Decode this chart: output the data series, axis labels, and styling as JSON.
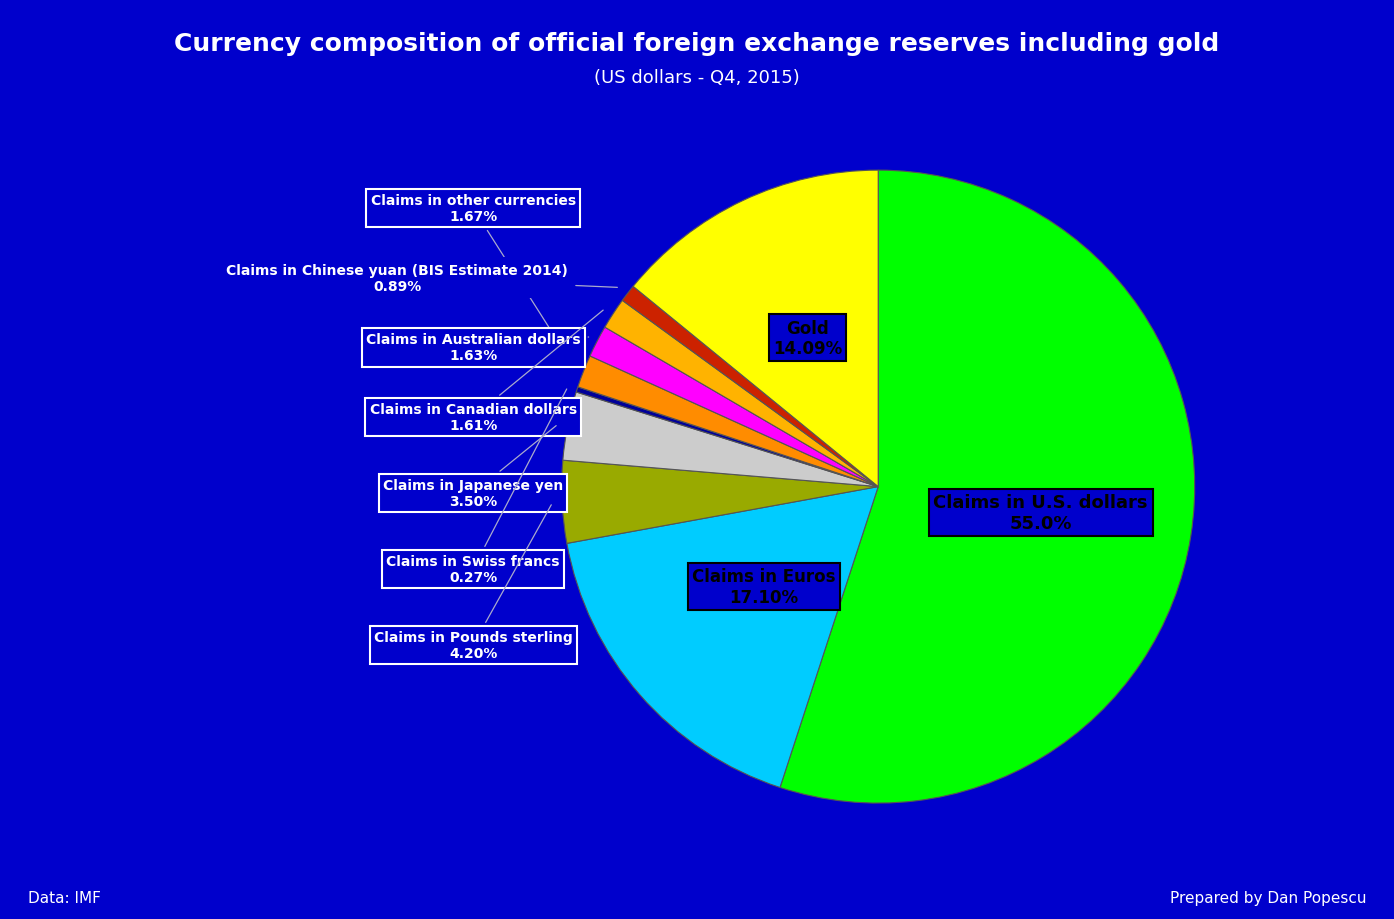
{
  "title": "Currency composition of official foreign exchange reserves including gold",
  "subtitle": "(US dollars - Q4, 2015)",
  "background_color": "#0000CC",
  "slices": [
    {
      "label": "Claims in U.S. dollars\n55.0%",
      "pct": 55.0,
      "color": "#00FF00"
    },
    {
      "label": "Claims in Euros\n17.10%",
      "pct": 17.1,
      "color": "#00CCFF"
    },
    {
      "label": "Claims in Pounds sterling\n4.20%",
      "pct": 4.2,
      "color": "#99AA00"
    },
    {
      "label": "Claims in Japanese yen\n3.50%",
      "pct": 3.5,
      "color": "#CCCCCC"
    },
    {
      "label": "Claims in Swiss francs\n0.27%",
      "pct": 0.27,
      "color": "#000099"
    },
    {
      "label": "Claims in other currencies\n1.67%",
      "pct": 1.67,
      "color": "#FF8C00"
    },
    {
      "label": "Claims in Australian dollars\n1.63%",
      "pct": 1.63,
      "color": "#FF00FF"
    },
    {
      "label": "Claims in Canadian dollars\n1.61%",
      "pct": 1.61,
      "color": "#FFB300"
    },
    {
      "label": "Claims in Chinese yuan (BIS Estimate 2014)\n0.89%",
      "pct": 0.89,
      "color": "#CC2200"
    },
    {
      "label": "Gold\n14.09%",
      "pct": 14.09,
      "color": "#FFFF00"
    }
  ],
  "footer_left": "Data: IMF",
  "footer_right": "Prepared by Dan Popescu",
  "title_color": "#FFFFFF",
  "bg": "#0000CC"
}
